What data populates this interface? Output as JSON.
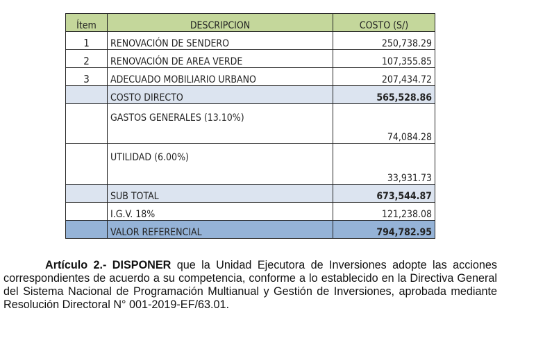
{
  "table": {
    "headers": [
      "Ítem",
      "DESCRIPCION",
      "COSTO (S/)"
    ],
    "rows": [
      {
        "item": "1",
        "desc": "RENOVACIÓN DE SENDERO",
        "cost": "250,738.29"
      },
      {
        "item": "2",
        "desc": "RENOVACIÓN DE AREA VERDE",
        "cost": "107,355.85"
      },
      {
        "item": "3",
        "desc": "ADECUADO MOBILIARIO URBANO",
        "cost": "207,434.72"
      },
      {
        "item": "",
        "desc": "COSTO DIRECTO",
        "cost": "565,528.86"
      },
      {
        "item": "",
        "desc": "GASTOS GENERALES (13.10%)",
        "cost": "74,084.28"
      },
      {
        "item": "",
        "desc": "UTILIDAD (6.00%)",
        "cost": "33,931.73"
      },
      {
        "item": "",
        "desc": "SUB TOTAL",
        "cost": "673,544.87"
      },
      {
        "item": "",
        "desc": "I.G.V. 18%",
        "cost": "121,238.08"
      },
      {
        "item": "",
        "desc": "VALOR REFERENCIAL",
        "cost": "794,782.95"
      }
    ]
  },
  "article": {
    "label": "Artículo 2.- DISPONER",
    "text": " que la Unidad Ejecutora de Inversiones adopte las acciones correspondientes de acuerdo a su competencia, conforme a lo establecido en la Directiva General del Sistema Nacional de Programación Multianual y Gestión de Inversiones, aprobada mediante Resolución Directoral N° 001-2019-EF/63.01."
  },
  "colors": {
    "header": "#c4d79b",
    "subtotal": "#dce4f0",
    "total": "#95b3d7"
  }
}
